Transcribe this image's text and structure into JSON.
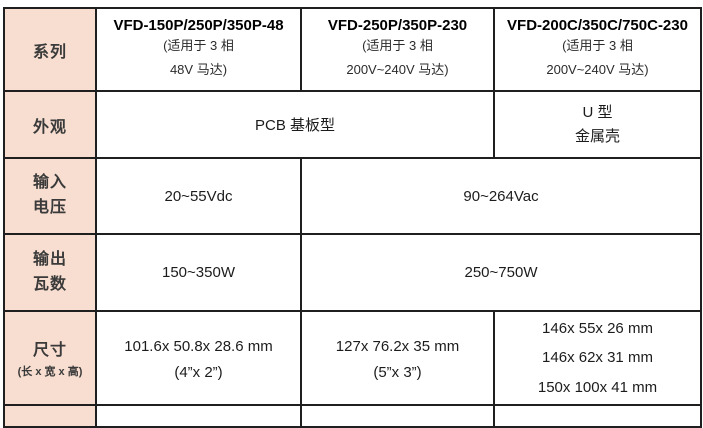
{
  "colors": {
    "row_header_fill": "#f8ded0",
    "border": "#1f1f1f",
    "background": "#ffffff"
  },
  "table": {
    "series_row": {
      "header": "系列",
      "cols": [
        {
          "title": "VFD-150P/250P/350P-48",
          "sub1": "(适用于 3 相",
          "sub2": "48V 马达)"
        },
        {
          "title": "VFD-250P/350P-230",
          "sub1": "(适用于 3 相",
          "sub2": "200V~240V 马达)"
        },
        {
          "title": "VFD-200C/350C/750C-230",
          "sub1": "(适用于 3 相",
          "sub2": "200V~240V 马达)"
        }
      ]
    },
    "appearance_row": {
      "header": "外观",
      "pcb_type": "PCB 基板型",
      "u_type_line1": "U 型",
      "u_type_line2": "金属壳"
    },
    "input_voltage_row": {
      "header_line1": "输入",
      "header_line2": "电压",
      "dc_value": "20~55Vdc",
      "ac_value": "90~264Vac"
    },
    "output_wattage_row": {
      "header_line1": "输出",
      "header_line2": "瓦数",
      "col1_value": "150~350W",
      "col23_value": "250~750W"
    },
    "dimensions_row": {
      "header": "尺寸",
      "header_sub": "(长 x 宽 x 高)",
      "col1_line1": "101.6x 50.8x 28.6 mm",
      "col1_line2": "(4”x 2”)",
      "col2_line1": "127x 76.2x 35 mm",
      "col2_line2": "(5”x 3”)",
      "col3_lines": [
        "146x 55x 26 mm",
        "146x 62x 31 mm",
        "150x 100x 41 mm"
      ]
    }
  }
}
